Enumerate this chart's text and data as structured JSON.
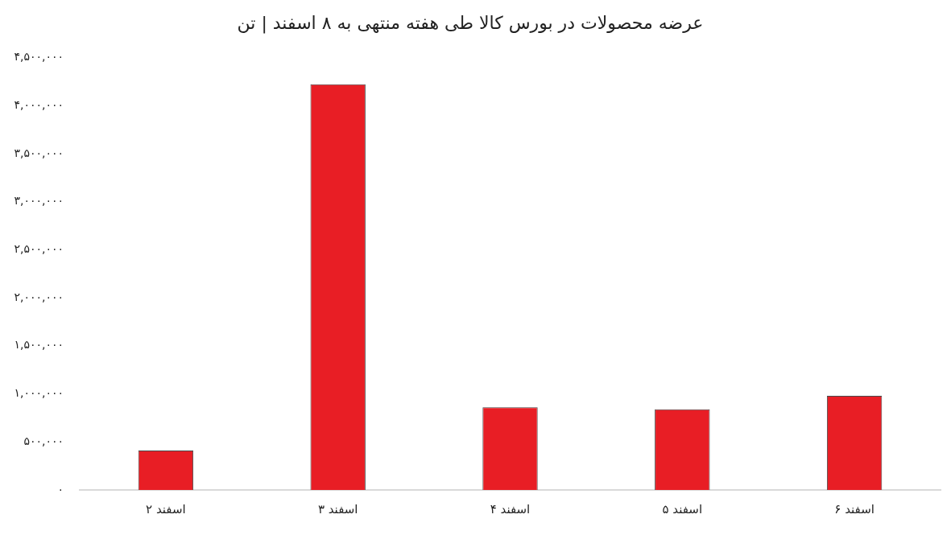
{
  "chart_data": {
    "type": "bar",
    "title": "عرضه محصولات در بورس کالا طی هفته منتهی به ۸ اسفند | تن",
    "categories": [
      "۲ اسفند",
      "۳ اسفند",
      "۴ اسفند",
      "۵ اسفند",
      "۶ اسفند"
    ],
    "values": [
      410000,
      4220000,
      860000,
      840000,
      980000
    ],
    "color": "#e81e25",
    "ylim": [
      0,
      4500000
    ],
    "yticks": [
      {
        "value": 0,
        "label": "۰"
      },
      {
        "value": 500000,
        "label": "۵۰۰,۰۰۰"
      },
      {
        "value": 1000000,
        "label": "۱,۰۰۰,۰۰۰"
      },
      {
        "value": 1500000,
        "label": "۱,۵۰۰,۰۰۰"
      },
      {
        "value": 2000000,
        "label": "۲,۰۰۰,۰۰۰"
      },
      {
        "value": 2500000,
        "label": "۲,۵۰۰,۰۰۰"
      },
      {
        "value": 3000000,
        "label": "۳,۰۰۰,۰۰۰"
      },
      {
        "value": 3500000,
        "label": "۳,۵۰۰,۰۰۰"
      },
      {
        "value": 4000000,
        "label": "۴,۰۰۰,۰۰۰"
      },
      {
        "value": 4500000,
        "label": "۴,۵۰۰,۰۰۰"
      }
    ],
    "grid": false,
    "legend": false
  }
}
